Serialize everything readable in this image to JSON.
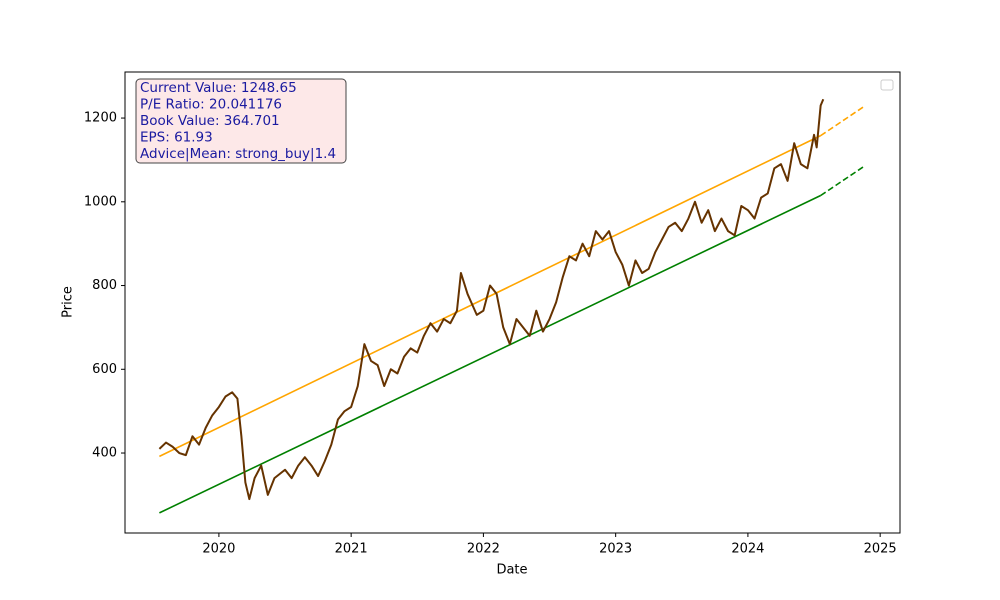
{
  "chart_data": {
    "type": "line",
    "xlabel": "Date",
    "ylabel": "Price",
    "xlim": [
      2019.29,
      2025.15
    ],
    "xticks": [
      2020,
      2021,
      2022,
      2023,
      2024,
      2025
    ],
    "ylim": [
      209,
      1310
    ],
    "yticks": [
      400,
      600,
      800,
      1000,
      1200
    ],
    "legend": "upper right",
    "annotation": {
      "lines": [
        "Current Value: 1248.65",
        "P/E Ratio: 20.041176",
        "Book Value: 364.701",
        "EPS: 61.93",
        "Advice|Mean: strong_buy|1.4"
      ]
    },
    "series": [
      {
        "color": "#ffa500",
        "dashed": false,
        "x": [
          2019.55,
          2024.55
        ],
        "values": [
          392,
          1158
        ]
      },
      {
        "color": "#ffa500",
        "dashed": true,
        "x": [
          2024.55,
          2024.88
        ],
        "values": [
          1158,
          1228
        ]
      },
      {
        "color": "#008000",
        "dashed": false,
        "x": [
          2019.55,
          2024.55
        ],
        "values": [
          257,
          1015
        ]
      },
      {
        "color": "#008000",
        "dashed": true,
        "x": [
          2024.55,
          2024.88
        ],
        "values": [
          1015,
          1085
        ]
      },
      {
        "color": "#663300",
        "dashed": false,
        "x": [
          2019.55,
          2019.6,
          2019.65,
          2019.7,
          2019.75,
          2019.8,
          2019.85,
          2019.9,
          2019.95,
          2020.0,
          2020.05,
          2020.1,
          2020.14,
          2020.17,
          2020.2,
          2020.23,
          2020.27,
          2020.32,
          2020.37,
          2020.42,
          2020.5,
          2020.55,
          2020.6,
          2020.65,
          2020.7,
          2020.75,
          2020.8,
          2020.85,
          2020.9,
          2020.95,
          2021.0,
          2021.05,
          2021.1,
          2021.15,
          2021.2,
          2021.25,
          2021.3,
          2021.35,
          2021.4,
          2021.45,
          2021.5,
          2021.55,
          2021.6,
          2021.65,
          2021.7,
          2021.75,
          2021.8,
          2021.83,
          2021.88,
          2021.95,
          2022.0,
          2022.05,
          2022.1,
          2022.15,
          2022.2,
          2022.25,
          2022.3,
          2022.35,
          2022.4,
          2022.45,
          2022.5,
          2022.55,
          2022.6,
          2022.65,
          2022.7,
          2022.75,
          2022.8,
          2022.85,
          2022.9,
          2022.95,
          2023.0,
          2023.05,
          2023.1,
          2023.15,
          2023.2,
          2023.25,
          2023.3,
          2023.35,
          2023.4,
          2023.45,
          2023.5,
          2023.55,
          2023.6,
          2023.65,
          2023.7,
          2023.75,
          2023.8,
          2023.85,
          2023.9,
          2023.95,
          2024.0,
          2024.05,
          2024.1,
          2024.15,
          2024.2,
          2024.25,
          2024.3,
          2024.35,
          2024.4,
          2024.45,
          2024.5,
          2024.52,
          2024.55,
          2024.57
        ],
        "values": [
          410,
          425,
          415,
          400,
          395,
          440,
          420,
          460,
          490,
          510,
          535,
          545,
          530,
          440,
          330,
          290,
          340,
          370,
          300,
          340,
          360,
          340,
          370,
          390,
          370,
          345,
          380,
          420,
          480,
          500,
          510,
          560,
          660,
          620,
          610,
          560,
          600,
          590,
          630,
          650,
          640,
          680,
          710,
          690,
          720,
          710,
          740,
          830,
          780,
          730,
          740,
          800,
          780,
          700,
          660,
          720,
          700,
          680,
          740,
          690,
          720,
          760,
          820,
          870,
          860,
          900,
          870,
          930,
          910,
          930,
          880,
          850,
          800,
          860,
          830,
          840,
          880,
          910,
          940,
          950,
          930,
          960,
          1000,
          950,
          980,
          930,
          960,
          930,
          920,
          990,
          980,
          960,
          1010,
          1020,
          1080,
          1090,
          1050,
          1140,
          1090,
          1080,
          1160,
          1130,
          1230,
          1245
        ]
      }
    ]
  }
}
